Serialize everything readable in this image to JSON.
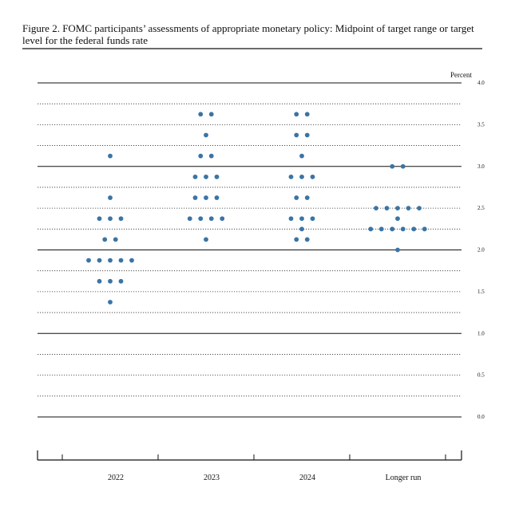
{
  "chart_data": {
    "type": "dot",
    "title": "Figure 2.  FOMC participants’ assessments of appropriate monetary policy: Midpoint of target range or target level for the federal funds rate",
    "ylabel": "Percent",
    "categories": [
      "2022",
      "2023",
      "2024",
      "Longer run"
    ],
    "color": "#3a74a6",
    "values": [
      [
        3.125,
        2.625,
        2.375,
        2.375,
        2.375,
        2.125,
        2.125,
        1.875,
        1.875,
        1.875,
        1.875,
        1.875,
        1.625,
        1.625,
        1.625,
        1.375
      ],
      [
        3.625,
        3.625,
        3.375,
        3.125,
        3.125,
        2.875,
        2.875,
        2.875,
        2.625,
        2.625,
        2.625,
        2.375,
        2.375,
        2.375,
        2.375,
        2.125
      ],
      [
        3.625,
        3.625,
        3.375,
        3.375,
        3.125,
        2.875,
        2.875,
        2.875,
        2.625,
        2.625,
        2.375,
        2.375,
        2.375,
        2.25,
        2.125,
        2.125
      ],
      [
        3.0,
        3.0,
        2.5,
        2.5,
        2.5,
        2.5,
        2.5,
        2.375,
        2.25,
        2.25,
        2.25,
        2.25,
        2.25,
        2.25,
        2.0
      ]
    ],
    "ylim": [
      0,
      4
    ],
    "yticks": [
      {
        "value": 0,
        "label": "0.0"
      },
      0.5,
      {
        "value": 1,
        "label": "1.0"
      },
      1.5,
      {
        "value": 2,
        "label": "2.0"
      },
      2.5,
      {
        "value": 3,
        "label": "3.0"
      },
      3.5,
      {
        "value": 4,
        "label": "4.0"
      }
    ],
    "yminorticks": [
      0.25,
      0.75,
      1.25,
      1.75,
      2.25,
      2.75,
      3.25,
      3.75
    ],
    "grid": true
  }
}
